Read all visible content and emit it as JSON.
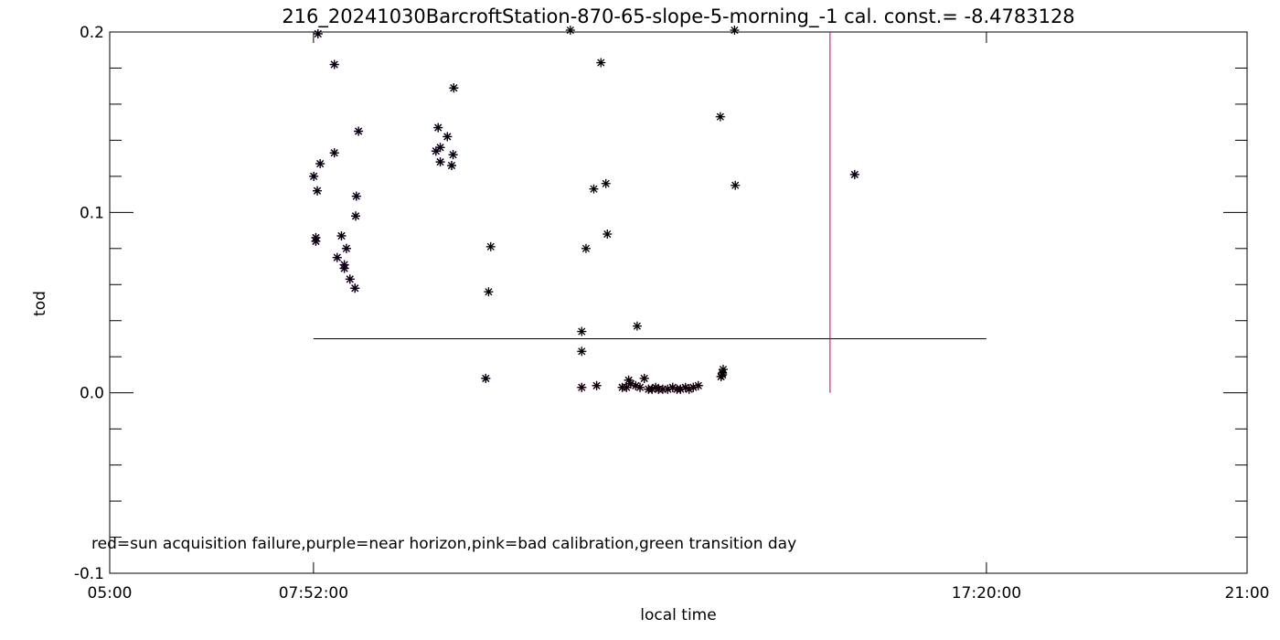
{
  "chart_data": {
    "type": "scatter",
    "title": "216_20241030BarcroftStation-870-65-slope-5-morning_-1 cal. const.= -8.4783128",
    "xlabel": "local time",
    "ylabel": "tod",
    "x_ticks": [
      "05:00",
      "07:52:00",
      "17:20:00",
      "21:00"
    ],
    "x_tick_hours": [
      5.0,
      7.8667,
      17.3333,
      21.0
    ],
    "xlim_hours": [
      5.0,
      21.0
    ],
    "ylim": [
      -0.1,
      0.2
    ],
    "y_ticks": [
      "-0.1",
      "0.0",
      "0.1",
      "0.2"
    ],
    "y_tick_values": [
      -0.1,
      0.0,
      0.1,
      0.2
    ],
    "annotation": "red=sun acquisition failure,purple=near horizon,pink=bad calibration,green transition day",
    "colors": {
      "black": "#000000",
      "purple": "#8a00c8",
      "pink": "#e0109a",
      "reference": "#000000",
      "vline": "#c0006a"
    },
    "hline": {
      "y": 0.03,
      "x_range_hours": [
        7.8667,
        17.3333
      ]
    },
    "vline": {
      "x_hour": 15.1333,
      "y_range": [
        0.0,
        0.2
      ]
    },
    "series": [
      {
        "color": "purple",
        "points": [
          [
            7.87,
            0.12
          ],
          [
            7.93,
            0.199
          ],
          [
            7.92,
            0.112
          ],
          [
            7.9,
            0.084
          ],
          [
            7.9,
            0.086
          ],
          [
            7.96,
            0.127
          ],
          [
            8.16,
            0.182
          ],
          [
            8.16,
            0.133
          ],
          [
            8.2,
            0.075
          ],
          [
            8.26,
            0.087
          ],
          [
            8.3,
            0.071
          ],
          [
            8.3,
            0.069
          ],
          [
            8.33,
            0.08
          ],
          [
            8.38,
            0.063
          ],
          [
            8.45,
            0.058
          ],
          [
            8.46,
            0.098
          ],
          [
            8.47,
            0.109
          ],
          [
            8.5,
            0.145
          ],
          [
            9.59,
            0.134
          ],
          [
            9.62,
            0.147
          ],
          [
            9.65,
            0.136
          ],
          [
            9.65,
            0.128
          ],
          [
            9.75,
            0.142
          ],
          [
            9.81,
            0.126
          ],
          [
            9.83,
            0.132
          ],
          [
            9.84,
            0.169
          ],
          [
            10.29,
            0.008
          ],
          [
            15.48,
            0.121
          ]
        ]
      },
      {
        "color": "pink",
        "points": [
          [
            11.64,
            0.003
          ],
          [
            11.85,
            0.004
          ],
          [
            12.21,
            0.003
          ],
          [
            12.27,
            0.003
          ],
          [
            12.3,
            0.007
          ],
          [
            12.33,
            0.005
          ],
          [
            12.4,
            0.004
          ],
          [
            12.46,
            0.003
          ],
          [
            12.52,
            0.008
          ],
          [
            12.58,
            0.002
          ],
          [
            12.63,
            0.002
          ],
          [
            12.68,
            0.003
          ],
          [
            12.72,
            0.002
          ],
          [
            12.78,
            0.002
          ],
          [
            12.85,
            0.002
          ],
          [
            12.92,
            0.003
          ],
          [
            12.98,
            0.002
          ],
          [
            13.03,
            0.002
          ],
          [
            13.1,
            0.003
          ],
          [
            13.15,
            0.002
          ],
          [
            13.21,
            0.003
          ],
          [
            13.28,
            0.004
          ],
          [
            13.6,
            0.009
          ],
          [
            13.62,
            0.011
          ]
        ]
      },
      {
        "color": "black",
        "points": [
          [
            10.36,
            0.081
          ],
          [
            10.33,
            0.056
          ],
          [
            11.48,
            0.201
          ],
          [
            11.64,
            0.034
          ],
          [
            11.64,
            0.023
          ],
          [
            11.7,
            0.08
          ],
          [
            11.81,
            0.113
          ],
          [
            11.91,
            0.183
          ],
          [
            11.98,
            0.116
          ],
          [
            12.0,
            0.088
          ],
          [
            12.42,
            0.037
          ],
          [
            13.59,
            0.153
          ],
          [
            13.63,
            0.013
          ],
          [
            13.62,
            0.01
          ],
          [
            13.79,
            0.201
          ],
          [
            13.8,
            0.115
          ]
        ]
      }
    ]
  }
}
